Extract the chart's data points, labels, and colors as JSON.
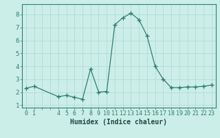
{
  "x": [
    0,
    1,
    4,
    5,
    6,
    7,
    8,
    9,
    10,
    11,
    12,
    13,
    14,
    15,
    16,
    17,
    18,
    19,
    20,
    21,
    22,
    23
  ],
  "y": [
    2.3,
    2.45,
    1.65,
    1.75,
    1.6,
    1.45,
    3.8,
    2.0,
    2.05,
    7.2,
    7.75,
    8.1,
    7.6,
    6.35,
    4.0,
    3.0,
    2.35,
    2.35,
    2.4,
    2.4,
    2.45,
    2.55
  ],
  "y_ticks": [
    1,
    2,
    3,
    4,
    5,
    6,
    7,
    8
  ],
  "xlabel": "Humidex (Indice chaleur)",
  "ylim": [
    0.8,
    8.8
  ],
  "xlim": [
    -0.5,
    23.5
  ],
  "line_color": "#2e7d6e",
  "marker": "+",
  "bg_color": "#cceee8",
  "grid_color": "#aed8d0",
  "axis_color": "#2e7d6e",
  "tick_label_color": "#1a4a40",
  "font_size": 6.5
}
